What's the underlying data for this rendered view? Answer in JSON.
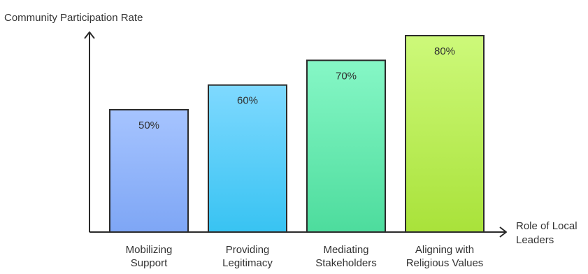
{
  "chart_data": {
    "type": "bar",
    "ylabel": "Community Participation Rate",
    "xlabel_lines": [
      "Role of Local",
      "Leaders"
    ],
    "categories": [
      [
        "Mobilizing",
        "Support"
      ],
      [
        "Providing",
        "Legitimacy"
      ],
      [
        "Mediating",
        "Stakeholders"
      ],
      [
        "Aligning with",
        "Religious Values"
      ]
    ],
    "values": [
      50,
      60,
      70,
      80
    ],
    "data_labels": [
      "50%",
      "60%",
      "70%",
      "80%"
    ],
    "bar_colors": [
      {
        "top": "#a6c4ff",
        "bottom": "#7ea6f5"
      },
      {
        "top": "#7fd9ff",
        "bottom": "#38c3f2"
      },
      {
        "top": "#86f7c6",
        "bottom": "#4ddc9d"
      },
      {
        "top": "#cdf97a",
        "bottom": "#a9e23a"
      }
    ],
    "bar_stroke": "#2b2b2b",
    "axis_color": "#2b2b2b",
    "grid": false
  }
}
